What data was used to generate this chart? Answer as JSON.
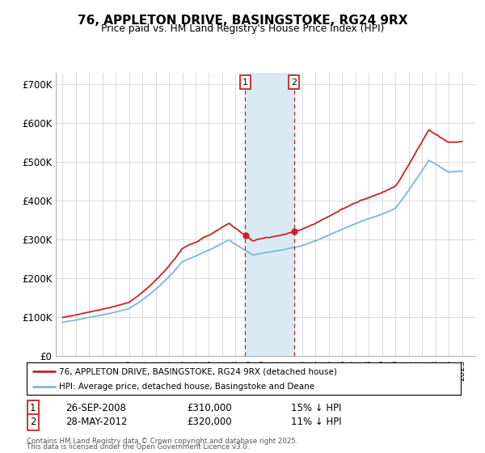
{
  "title": "76, APPLETON DRIVE, BASINGSTOKE, RG24 9RX",
  "subtitle": "Price paid vs. HM Land Registry's House Price Index (HPI)",
  "hpi_color": "#7ab8d9",
  "price_color": "#cc2222",
  "shade_color": "#daeaf5",
  "sale1_year": 2008.73,
  "sale1_price": 310000,
  "sale2_year": 2012.38,
  "sale2_price": 320000,
  "ylim": [
    0,
    730000
  ],
  "yticks": [
    0,
    100000,
    200000,
    300000,
    400000,
    500000,
    600000,
    700000
  ],
  "ytick_labels": [
    "£0",
    "£100K",
    "£200K",
    "£300K",
    "£400K",
    "£500K",
    "£600K",
    "£700K"
  ],
  "xstart": 1995,
  "xend": 2025,
  "legend_line1": "76, APPLETON DRIVE, BASINGSTOKE, RG24 9RX (detached house)",
  "legend_line2": "HPI: Average price, detached house, Basingstoke and Deane",
  "table_row1_num": "1",
  "table_row1_date": "26-SEP-2008",
  "table_row1_price": "£310,000",
  "table_row1_hpi": "15% ↓ HPI",
  "table_row2_num": "2",
  "table_row2_date": "28-MAY-2012",
  "table_row2_price": "£320,000",
  "table_row2_hpi": "11% ↓ HPI",
  "footnote_line1": "Contains HM Land Registry data © Crown copyright and database right 2025.",
  "footnote_line2": "This data is licensed under the Open Government Licence v3.0."
}
